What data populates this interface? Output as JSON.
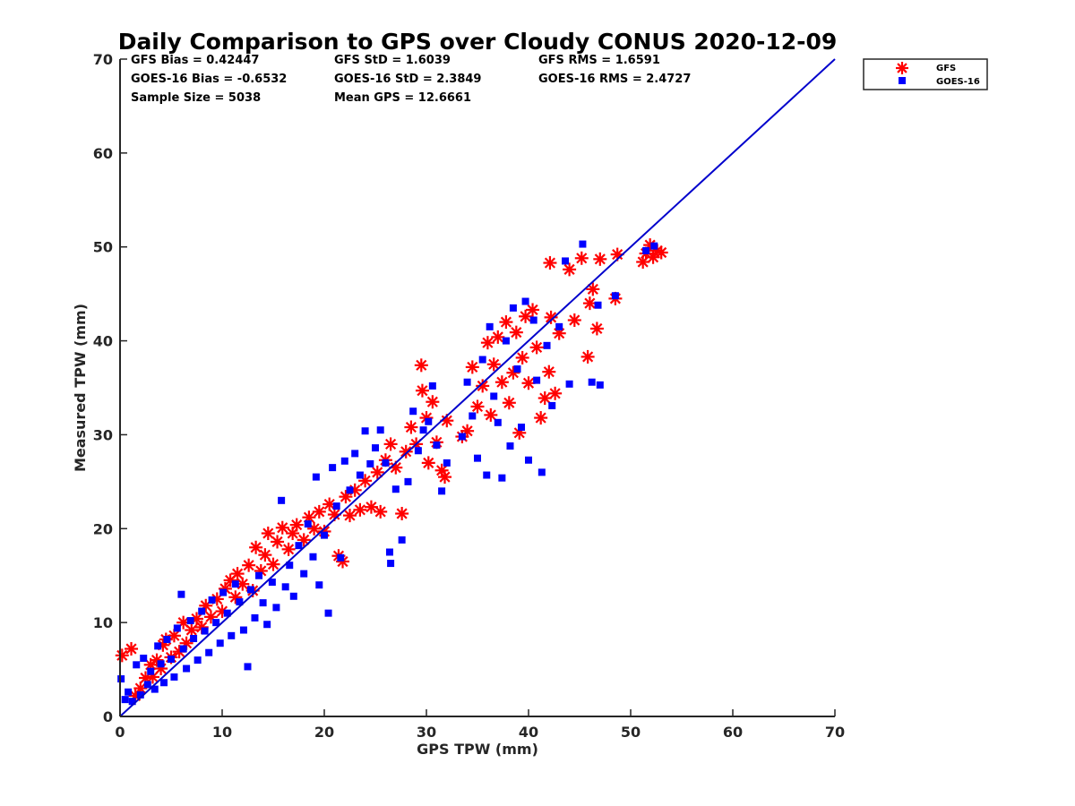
{
  "chart_data": {
    "type": "scatter",
    "title": "Daily Comparison to GPS over Cloudy CONUS 2020-12-09",
    "xlabel": "GPS TPW (mm)",
    "ylabel": "Measured TPW (mm)",
    "xlim": [
      0,
      70
    ],
    "ylim": [
      0,
      70
    ],
    "xticks": [
      "0",
      "10",
      "20",
      "30",
      "40",
      "50",
      "60",
      "70"
    ],
    "yticks": [
      "0",
      "10",
      "20",
      "30",
      "40",
      "50",
      "60",
      "70"
    ],
    "grid": false,
    "legend_position": "outside-top-right",
    "reference_line": {
      "x": [
        0,
        70
      ],
      "y": [
        0,
        70
      ],
      "color": "#0000cc"
    },
    "stats": [
      {
        "text": "GFS Bias = 0.42447",
        "row": 0,
        "col": 0
      },
      {
        "text": "GFS StD = 1.6039",
        "row": 0,
        "col": 1
      },
      {
        "text": "GFS RMS = 1.6591",
        "row": 0,
        "col": 2
      },
      {
        "text": "GOES-16 Bias = -0.6532",
        "row": 1,
        "col": 0
      },
      {
        "text": "GOES-16 StD = 2.3849",
        "row": 1,
        "col": 1
      },
      {
        "text": "GOES-16 RMS = 2.4727",
        "row": 1,
        "col": 2
      },
      {
        "text": "Sample Size = 5038",
        "row": 2,
        "col": 0
      },
      {
        "text": "Mean GPS = 12.6661",
        "row": 2,
        "col": 1
      }
    ],
    "series": [
      {
        "name": "GFS",
        "marker": "asterisk",
        "color": "#ff0000",
        "points": [
          [
            0.2,
            6.5
          ],
          [
            1.1,
            7.2
          ],
          [
            1.5,
            2.2
          ],
          [
            2.0,
            3.0
          ],
          [
            2.5,
            4.1
          ],
          [
            3.0,
            5.5
          ],
          [
            3.2,
            4.2
          ],
          [
            3.6,
            6.0
          ],
          [
            4.0,
            5.1
          ],
          [
            4.2,
            7.6
          ],
          [
            4.5,
            8.2
          ],
          [
            5.0,
            6.3
          ],
          [
            5.3,
            8.6
          ],
          [
            5.8,
            6.9
          ],
          [
            6.2,
            10.0
          ],
          [
            6.5,
            7.8
          ],
          [
            7.0,
            9.2
          ],
          [
            7.5,
            10.4
          ],
          [
            8.0,
            9.5
          ],
          [
            8.4,
            11.8
          ],
          [
            8.9,
            10.6
          ],
          [
            9.5,
            12.5
          ],
          [
            10.0,
            11.2
          ],
          [
            10.3,
            13.6
          ],
          [
            10.8,
            14.5
          ],
          [
            11.3,
            12.7
          ],
          [
            11.5,
            15.2
          ],
          [
            12.0,
            14.1
          ],
          [
            12.6,
            16.1
          ],
          [
            13.0,
            13.4
          ],
          [
            13.3,
            18.0
          ],
          [
            13.8,
            15.5
          ],
          [
            14.2,
            17.2
          ],
          [
            14.5,
            19.5
          ],
          [
            15.0,
            16.2
          ],
          [
            15.4,
            18.6
          ],
          [
            15.9,
            20.1
          ],
          [
            16.5,
            17.8
          ],
          [
            16.9,
            19.5
          ],
          [
            17.3,
            20.4
          ],
          [
            18.0,
            18.8
          ],
          [
            18.5,
            21.2
          ],
          [
            19.0,
            20.0
          ],
          [
            19.5,
            21.8
          ],
          [
            20.0,
            19.7
          ],
          [
            20.5,
            22.6
          ],
          [
            21.0,
            21.5
          ],
          [
            21.4,
            17.1
          ],
          [
            21.8,
            16.5
          ],
          [
            22.1,
            23.4
          ],
          [
            22.5,
            21.4
          ],
          [
            23.0,
            24.1
          ],
          [
            23.5,
            22.0
          ],
          [
            24.0,
            25.1
          ],
          [
            24.6,
            22.3
          ],
          [
            25.2,
            26.0
          ],
          [
            25.5,
            21.8
          ],
          [
            26.0,
            27.3
          ],
          [
            26.5,
            29.0
          ],
          [
            27.0,
            26.5
          ],
          [
            27.6,
            21.6
          ],
          [
            28.0,
            28.2
          ],
          [
            28.5,
            30.8
          ],
          [
            29.0,
            29.0
          ],
          [
            29.5,
            37.4
          ],
          [
            29.6,
            34.7
          ],
          [
            30.0,
            31.8
          ],
          [
            30.2,
            27.0
          ],
          [
            30.6,
            33.5
          ],
          [
            31.0,
            29.2
          ],
          [
            31.5,
            26.2
          ],
          [
            31.8,
            25.5
          ],
          [
            32.0,
            31.5
          ],
          [
            33.5,
            29.8
          ],
          [
            34.0,
            30.4
          ],
          [
            34.5,
            37.2
          ],
          [
            35.0,
            33.0
          ],
          [
            35.5,
            35.2
          ],
          [
            36.0,
            39.8
          ],
          [
            36.3,
            32.1
          ],
          [
            36.6,
            37.5
          ],
          [
            37.0,
            40.4
          ],
          [
            37.4,
            35.6
          ],
          [
            37.8,
            42.0
          ],
          [
            38.1,
            33.4
          ],
          [
            38.5,
            36.6
          ],
          [
            38.8,
            40.9
          ],
          [
            39.1,
            30.2
          ],
          [
            39.4,
            38.2
          ],
          [
            39.7,
            42.6
          ],
          [
            40.0,
            35.5
          ],
          [
            40.4,
            43.3
          ],
          [
            40.8,
            39.3
          ],
          [
            41.2,
            31.8
          ],
          [
            41.6,
            33.9
          ],
          [
            42.0,
            36.7
          ],
          [
            42.1,
            48.3
          ],
          [
            42.2,
            42.5
          ],
          [
            42.6,
            34.4
          ],
          [
            43.0,
            40.8
          ],
          [
            44.0,
            47.6
          ],
          [
            44.5,
            42.2
          ],
          [
            45.2,
            48.8
          ],
          [
            45.8,
            38.3
          ],
          [
            46.0,
            44.0
          ],
          [
            46.3,
            45.5
          ],
          [
            46.7,
            41.3
          ],
          [
            47.0,
            48.7
          ],
          [
            48.5,
            44.5
          ],
          [
            48.7,
            49.2
          ],
          [
            51.2,
            48.4
          ],
          [
            51.5,
            49.3
          ],
          [
            51.9,
            50.2
          ],
          [
            52.2,
            48.9
          ],
          [
            52.6,
            49.6
          ],
          [
            53.0,
            49.4
          ]
        ]
      },
      {
        "name": "GOES-16",
        "marker": "square",
        "color": "#0000ff",
        "points": [
          [
            0.1,
            4.0
          ],
          [
            0.5,
            1.8
          ],
          [
            0.8,
            2.6
          ],
          [
            1.2,
            1.6
          ],
          [
            1.6,
            5.5
          ],
          [
            2.0,
            2.3
          ],
          [
            2.3,
            6.2
          ],
          [
            2.7,
            3.4
          ],
          [
            3.0,
            4.8
          ],
          [
            3.4,
            2.9
          ],
          [
            3.7,
            7.5
          ],
          [
            4.0,
            5.6
          ],
          [
            4.3,
            3.6
          ],
          [
            4.6,
            8.2
          ],
          [
            5.0,
            6.1
          ],
          [
            5.3,
            4.2
          ],
          [
            5.6,
            9.4
          ],
          [
            6.0,
            13.0
          ],
          [
            6.2,
            7.2
          ],
          [
            6.5,
            5.1
          ],
          [
            6.9,
            10.2
          ],
          [
            7.2,
            8.3
          ],
          [
            7.6,
            6.0
          ],
          [
            8.0,
            11.2
          ],
          [
            8.3,
            9.1
          ],
          [
            8.7,
            6.8
          ],
          [
            9.0,
            12.4
          ],
          [
            9.4,
            10.0
          ],
          [
            9.8,
            7.8
          ],
          [
            10.1,
            13.2
          ],
          [
            10.5,
            11.0
          ],
          [
            10.9,
            8.6
          ],
          [
            11.3,
            14.1
          ],
          [
            11.7,
            12.2
          ],
          [
            12.1,
            9.2
          ],
          [
            12.5,
            5.3
          ],
          [
            12.8,
            13.5
          ],
          [
            13.2,
            10.5
          ],
          [
            13.6,
            15.0
          ],
          [
            14.0,
            12.1
          ],
          [
            14.4,
            9.8
          ],
          [
            14.9,
            14.3
          ],
          [
            15.3,
            11.6
          ],
          [
            15.8,
            23.0
          ],
          [
            16.2,
            13.8
          ],
          [
            16.6,
            16.1
          ],
          [
            17.0,
            12.8
          ],
          [
            17.5,
            18.2
          ],
          [
            18.0,
            15.2
          ],
          [
            18.4,
            20.5
          ],
          [
            18.9,
            17.0
          ],
          [
            19.2,
            25.5
          ],
          [
            19.5,
            14.0
          ],
          [
            20.0,
            19.3
          ],
          [
            20.4,
            11.0
          ],
          [
            20.8,
            26.5
          ],
          [
            21.2,
            22.4
          ],
          [
            21.6,
            16.9
          ],
          [
            22.0,
            27.2
          ],
          [
            22.5,
            24.1
          ],
          [
            23.0,
            28.0
          ],
          [
            23.5,
            25.7
          ],
          [
            24.0,
            30.4
          ],
          [
            24.5,
            26.9
          ],
          [
            25.0,
            28.6
          ],
          [
            25.5,
            30.5
          ],
          [
            26.0,
            27.0
          ],
          [
            26.4,
            17.5
          ],
          [
            26.5,
            16.3
          ],
          [
            27.0,
            24.2
          ],
          [
            27.6,
            18.8
          ],
          [
            28.2,
            25.0
          ],
          [
            28.7,
            32.5
          ],
          [
            29.2,
            28.3
          ],
          [
            29.7,
            30.5
          ],
          [
            30.2,
            31.4
          ],
          [
            30.6,
            35.2
          ],
          [
            31.0,
            28.9
          ],
          [
            31.5,
            24.0
          ],
          [
            32.0,
            27.0
          ],
          [
            33.5,
            29.8
          ],
          [
            34.0,
            35.6
          ],
          [
            34.5,
            32.0
          ],
          [
            35.0,
            27.5
          ],
          [
            35.5,
            38.0
          ],
          [
            35.9,
            25.7
          ],
          [
            36.2,
            41.5
          ],
          [
            36.6,
            34.1
          ],
          [
            37.0,
            31.3
          ],
          [
            37.4,
            25.4
          ],
          [
            37.8,
            40.0
          ],
          [
            38.2,
            28.8
          ],
          [
            38.5,
            43.5
          ],
          [
            38.9,
            37.0
          ],
          [
            39.3,
            30.8
          ],
          [
            39.7,
            44.2
          ],
          [
            40.0,
            27.3
          ],
          [
            40.5,
            42.2
          ],
          [
            40.8,
            35.8
          ],
          [
            41.3,
            26.0
          ],
          [
            41.8,
            39.5
          ],
          [
            42.3,
            33.1
          ],
          [
            43.0,
            41.5
          ],
          [
            43.6,
            48.5
          ],
          [
            44.0,
            35.4
          ],
          [
            45.3,
            50.3
          ],
          [
            46.2,
            35.6
          ],
          [
            46.8,
            43.8
          ],
          [
            47.0,
            35.3
          ],
          [
            48.5,
            44.8
          ],
          [
            51.5,
            49.6
          ],
          [
            52.3,
            50.1
          ]
        ]
      }
    ]
  }
}
